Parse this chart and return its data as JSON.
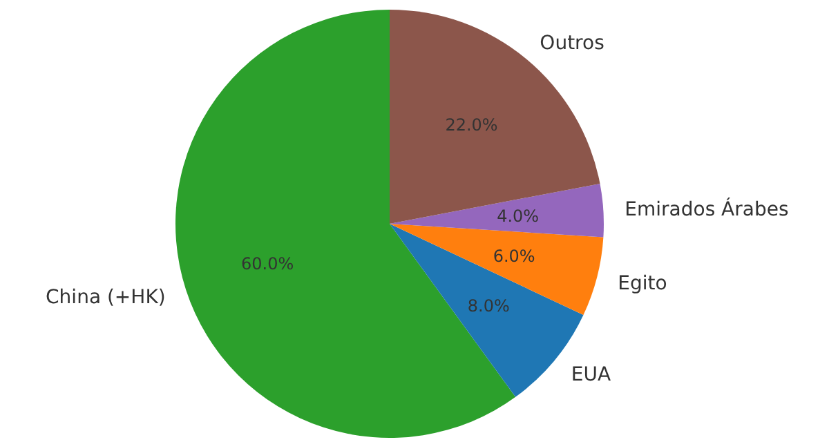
{
  "chart_data": {
    "type": "pie",
    "categories": [
      "China (+HK)",
      "EUA",
      "Egito",
      "Emirados Árabes",
      "Outros"
    ],
    "values": [
      60,
      8,
      6,
      4,
      22
    ],
    "colors": [
      "#2ca02c",
      "#1f77b4",
      "#ff7f0e",
      "#9467bd",
      "#8c564b"
    ],
    "value_labels": [
      "60.0%",
      "8.0%",
      "6.0%",
      "4.0%",
      "22.0%"
    ]
  }
}
